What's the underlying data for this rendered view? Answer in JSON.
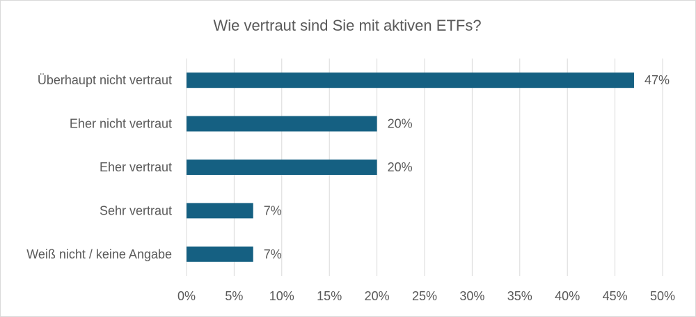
{
  "chart_data": {
    "type": "bar",
    "orientation": "horizontal",
    "title": "Wie vertraut sind Sie mit aktiven ETFs?",
    "categories": [
      "Überhaupt nicht vertraut",
      "Eher nicht vertraut",
      "Eher vertraut",
      "Sehr vertraut",
      "Weiß nicht / keine Angabe"
    ],
    "values": [
      47,
      20,
      20,
      7,
      7
    ],
    "value_labels": [
      "47%",
      "20%",
      "20%",
      "7%",
      "7%"
    ],
    "xlim": [
      0,
      50
    ],
    "xticks": [
      0,
      5,
      10,
      15,
      20,
      25,
      30,
      35,
      40,
      45,
      50
    ],
    "xtick_labels": [
      "0%",
      "5%",
      "10%",
      "15%",
      "20%",
      "25%",
      "30%",
      "35%",
      "40%",
      "45%",
      "50%"
    ],
    "xlabel": "",
    "ylabel": "",
    "grid": "vertical",
    "legend": "none",
    "bar_color": "#156082",
    "grid_color": "#d9d9d9",
    "text_color": "#595959"
  }
}
